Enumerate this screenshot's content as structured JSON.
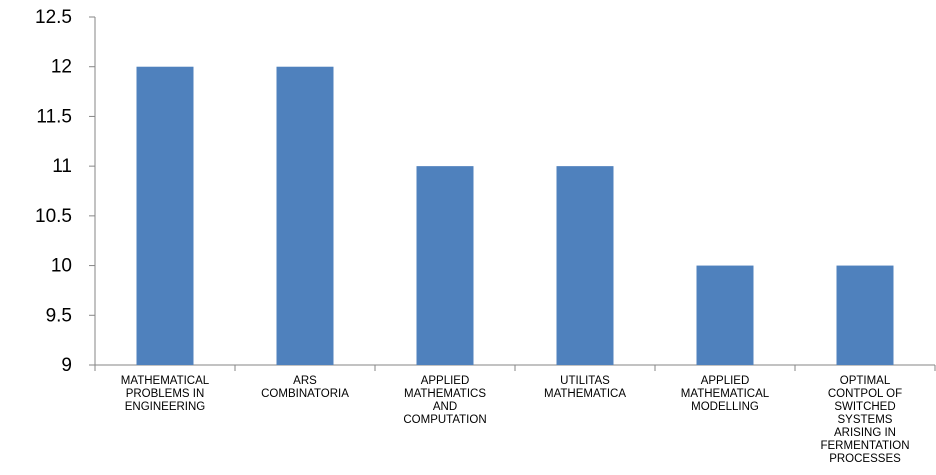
{
  "chart_data": {
    "type": "bar",
    "categories": [
      [
        "MATHEMATICAL",
        "PROBLEMS IN",
        "ENGINEERING"
      ],
      [
        "ARS",
        "COMBINATORIA"
      ],
      [
        "APPLIED",
        "MATHEMATICS",
        "AND",
        "COMPUTATION"
      ],
      [
        "UTILITAS",
        "MATHEMATICA"
      ],
      [
        "APPLIED",
        "MATHEMATICAL",
        "MODELLING"
      ],
      [
        "OPTIMAL",
        "CONTPOL OF",
        "SWITCHED",
        "SYSTEMS",
        "ARISING IN",
        "FERMENTATION",
        "PROCESSES"
      ]
    ],
    "values": [
      12,
      12,
      11,
      11,
      10,
      10
    ],
    "ylim": [
      9,
      12.5
    ],
    "yticks": [
      "9",
      "9.5",
      "10",
      "10.5",
      "11",
      "11.5",
      "12",
      "12.5"
    ],
    "bar_color": "#4f81bd",
    "grid": false,
    "legend": "none"
  }
}
